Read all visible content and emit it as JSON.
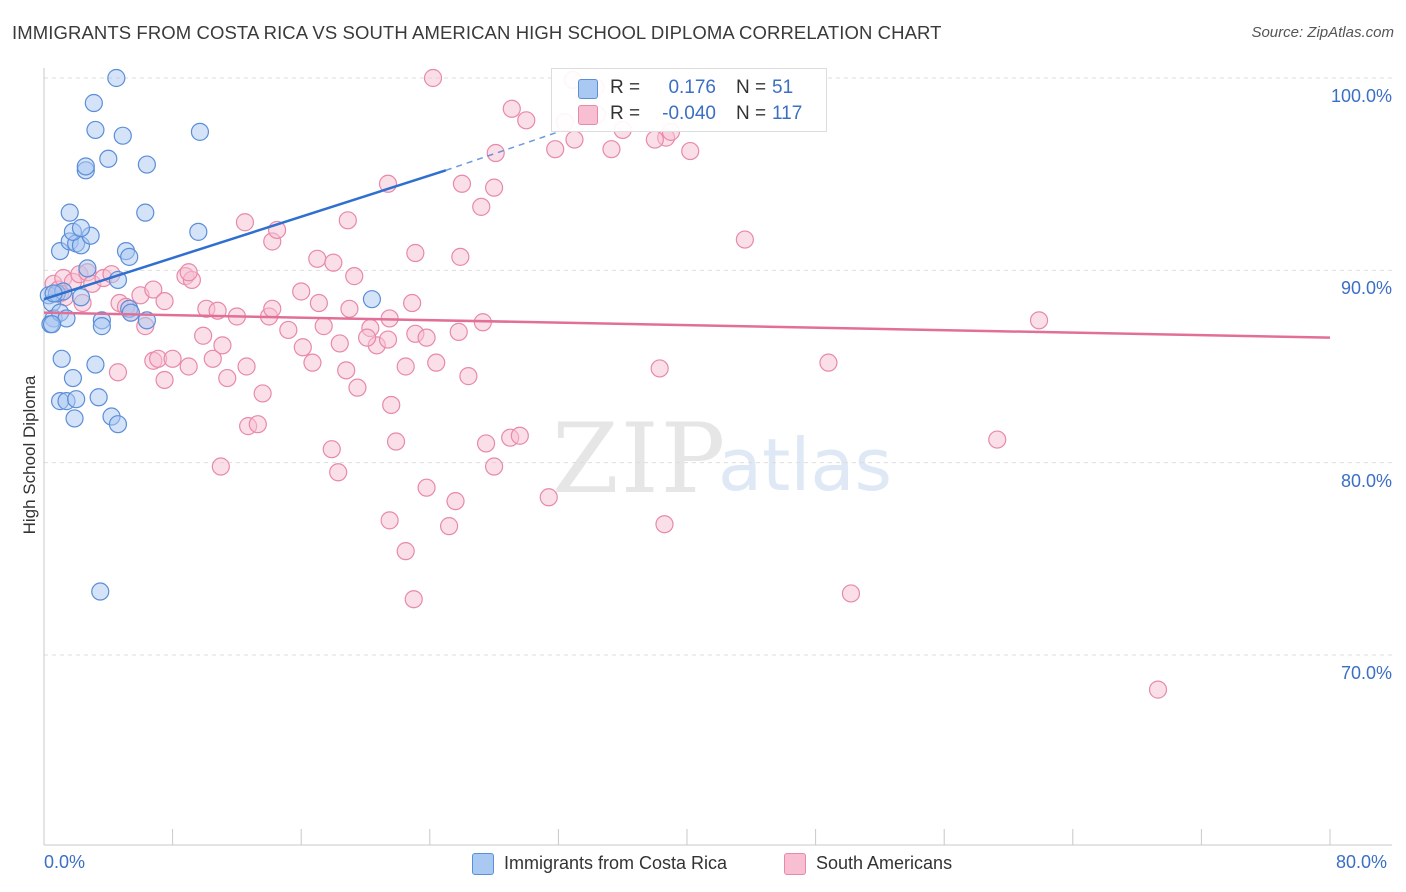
{
  "title": "IMMIGRANTS FROM COSTA RICA VS SOUTH AMERICAN HIGH SCHOOL DIPLOMA CORRELATION CHART",
  "source": "Source: ZipAtlas.com",
  "watermark": {
    "zip": "ZIP",
    "atlas": "atlas"
  },
  "legend_top": {
    "rows": [
      {
        "r_label": "R =",
        "r_value": "0.176",
        "n_label": "N =",
        "n_value": "51",
        "color": "#a9c8f2",
        "border": "#5b8ed8"
      },
      {
        "r_label": "R =",
        "r_value": "-0.040",
        "n_label": "N =",
        "n_value": "117",
        "color": "#f7bfd1",
        "border": "#e889a8"
      }
    ]
  },
  "legend_bottom": [
    {
      "label": "Immigrants from Costa Rica",
      "color": "#a9c8f2",
      "border": "#5b8ed8"
    },
    {
      "label": "South Americans",
      "color": "#f7bfd1",
      "border": "#e889a8"
    }
  ],
  "chart_data": {
    "type": "scatter",
    "title": "IMMIGRANTS FROM COSTA RICA VS SOUTH AMERICAN HIGH SCHOOL DIPLOMA CORRELATION CHART",
    "xlabel": "",
    "ylabel": "High School Diploma",
    "xlim": [
      0,
      80
    ],
    "ylim": [
      60,
      102
    ],
    "x_tick_labels": [
      "0.0%",
      "80.0%"
    ],
    "y_ticks": [
      70,
      80,
      90,
      100
    ],
    "y_tick_labels": [
      "70.0%",
      "80.0%",
      "90.0%",
      "100.0%"
    ],
    "grid": true,
    "series": [
      {
        "name": "Immigrants from Costa Rica",
        "color": "#a9c8f2",
        "edge": "#5b8ed8",
        "trend": {
          "x0": 0.0,
          "y0": 88.5,
          "x1": 25.0,
          "y1": 95.2,
          "dash_to_x": 32.0,
          "dash_to_y": 97.2,
          "color": "#2f6fd0"
        },
        "points": [
          [
            0.3,
            88.7
          ],
          [
            0.5,
            88.3
          ],
          [
            0.6,
            87.5
          ],
          [
            0.4,
            87.2
          ],
          [
            0.8,
            88.8
          ],
          [
            1.0,
            87.8
          ],
          [
            1.2,
            88.9
          ],
          [
            1.4,
            87.5
          ],
          [
            2.3,
            88.6
          ],
          [
            4.6,
            89.5
          ],
          [
            2.7,
            90.1
          ],
          [
            1.0,
            91.0
          ],
          [
            1.6,
            91.5
          ],
          [
            2.0,
            91.4
          ],
          [
            2.3,
            91.3
          ],
          [
            2.9,
            91.8
          ],
          [
            1.8,
            92.0
          ],
          [
            2.3,
            92.2
          ],
          [
            1.6,
            93.0
          ],
          [
            5.1,
            91.0
          ],
          [
            5.3,
            90.7
          ],
          [
            6.3,
            93.0
          ],
          [
            9.6,
            92.0
          ],
          [
            2.6,
            95.2
          ],
          [
            2.6,
            95.4
          ],
          [
            4.0,
            95.8
          ],
          [
            6.4,
            95.5
          ],
          [
            3.2,
            97.3
          ],
          [
            4.9,
            97.0
          ],
          [
            9.7,
            97.2
          ],
          [
            3.1,
            98.7
          ],
          [
            4.5,
            100.0
          ],
          [
            1.1,
            85.4
          ],
          [
            1.8,
            84.4
          ],
          [
            3.2,
            85.1
          ],
          [
            1.0,
            83.2
          ],
          [
            1.4,
            83.2
          ],
          [
            2.0,
            83.3
          ],
          [
            3.4,
            83.4
          ],
          [
            1.9,
            82.3
          ],
          [
            4.2,
            82.4
          ],
          [
            4.6,
            82.0
          ],
          [
            3.6,
            87.4
          ],
          [
            3.6,
            87.1
          ],
          [
            5.3,
            88.0
          ],
          [
            5.4,
            87.8
          ],
          [
            6.4,
            87.4
          ],
          [
            20.4,
            88.5
          ],
          [
            3.5,
            73.3
          ],
          [
            0.5,
            87.2
          ],
          [
            0.6,
            88.8
          ]
        ]
      },
      {
        "name": "South Americans",
        "color": "#f7bfd1",
        "edge": "#e889a8",
        "trend": {
          "x0": 0.0,
          "y0": 87.8,
          "x1": 80.0,
          "y1": 86.5,
          "color": "#e26f97"
        },
        "points": [
          [
            0.6,
            89.3
          ],
          [
            0.9,
            89.0
          ],
          [
            1.2,
            89.6
          ],
          [
            1.8,
            89.4
          ],
          [
            2.2,
            89.8
          ],
          [
            2.7,
            89.9
          ],
          [
            1.0,
            88.8
          ],
          [
            1.3,
            88.6
          ],
          [
            2.4,
            88.3
          ],
          [
            3.0,
            89.3
          ],
          [
            3.7,
            89.6
          ],
          [
            4.2,
            89.8
          ],
          [
            4.7,
            88.3
          ],
          [
            5.4,
            87.8
          ],
          [
            5.1,
            88.1
          ],
          [
            6.0,
            88.7
          ],
          [
            6.3,
            87.1
          ],
          [
            6.8,
            89.0
          ],
          [
            7.5,
            88.4
          ],
          [
            8.8,
            89.7
          ],
          [
            9.2,
            89.5
          ],
          [
            9.0,
            89.9
          ],
          [
            10.1,
            88.0
          ],
          [
            10.8,
            87.9
          ],
          [
            12.0,
            87.6
          ],
          [
            14.0,
            87.6
          ],
          [
            14.2,
            88.0
          ],
          [
            15.2,
            86.9
          ],
          [
            16.1,
            86.0
          ],
          [
            17.1,
            88.3
          ],
          [
            17.4,
            87.1
          ],
          [
            18.4,
            86.2
          ],
          [
            19.0,
            88.0
          ],
          [
            20.3,
            87.0
          ],
          [
            20.7,
            86.1
          ],
          [
            21.4,
            86.4
          ],
          [
            22.9,
            88.3
          ],
          [
            23.1,
            86.7
          ],
          [
            24.4,
            85.2
          ],
          [
            25.8,
            86.8
          ],
          [
            27.3,
            87.3
          ],
          [
            6.8,
            85.3
          ],
          [
            7.1,
            85.4
          ],
          [
            7.5,
            84.3
          ],
          [
            8.0,
            85.4
          ],
          [
            9.0,
            85.0
          ],
          [
            9.9,
            86.6
          ],
          [
            10.5,
            85.4
          ],
          [
            11.1,
            86.1
          ],
          [
            11.4,
            84.4
          ],
          [
            12.6,
            85.0
          ],
          [
            13.6,
            83.6
          ],
          [
            16.7,
            85.2
          ],
          [
            18.8,
            84.8
          ],
          [
            19.5,
            83.9
          ],
          [
            20.1,
            86.5
          ],
          [
            21.6,
            83.0
          ],
          [
            22.5,
            85.0
          ],
          [
            23.8,
            86.5
          ],
          [
            26.4,
            84.5
          ],
          [
            27.5,
            81.0
          ],
          [
            28.0,
            79.8
          ],
          [
            29.0,
            81.3
          ],
          [
            29.6,
            81.4
          ],
          [
            4.6,
            84.7
          ],
          [
            12.7,
            81.9
          ],
          [
            13.3,
            82.0
          ],
          [
            11.0,
            79.8
          ],
          [
            17.9,
            80.7
          ],
          [
            18.3,
            79.5
          ],
          [
            21.9,
            81.1
          ],
          [
            23.8,
            78.7
          ],
          [
            25.6,
            78.0
          ],
          [
            22.5,
            75.4
          ],
          [
            21.5,
            77.0
          ],
          [
            23.0,
            72.9
          ],
          [
            25.2,
            76.7
          ],
          [
            31.4,
            78.2
          ],
          [
            12.5,
            92.5
          ],
          [
            14.2,
            91.5
          ],
          [
            14.5,
            92.1
          ],
          [
            16.0,
            88.9
          ],
          [
            17.0,
            90.6
          ],
          [
            18.0,
            90.4
          ],
          [
            18.9,
            92.6
          ],
          [
            19.3,
            89.7
          ],
          [
            21.5,
            87.5
          ],
          [
            23.1,
            90.9
          ],
          [
            25.9,
            90.7
          ],
          [
            26.0,
            94.5
          ],
          [
            28.0,
            94.3
          ],
          [
            27.2,
            93.3
          ],
          [
            29.1,
            98.4
          ],
          [
            30.0,
            97.8
          ],
          [
            28.1,
            96.1
          ],
          [
            31.8,
            96.3
          ],
          [
            32.4,
            97.7
          ],
          [
            32.9,
            99.9
          ],
          [
            34.3,
            99.5
          ],
          [
            34.4,
            98.1
          ],
          [
            35.3,
            96.3
          ],
          [
            36.0,
            97.3
          ],
          [
            33.0,
            96.8
          ],
          [
            38.7,
            96.9
          ],
          [
            39.0,
            97.2
          ],
          [
            40.2,
            96.2
          ],
          [
            24.2,
            100.0
          ],
          [
            21.4,
            94.5
          ],
          [
            43.6,
            91.6
          ],
          [
            48.8,
            85.2
          ],
          [
            38.3,
            84.9
          ],
          [
            38.6,
            76.8
          ],
          [
            50.2,
            73.2
          ],
          [
            59.3,
            81.2
          ],
          [
            61.9,
            87.4
          ],
          [
            69.3,
            68.2
          ],
          [
            38.0,
            96.8
          ]
        ]
      }
    ]
  }
}
